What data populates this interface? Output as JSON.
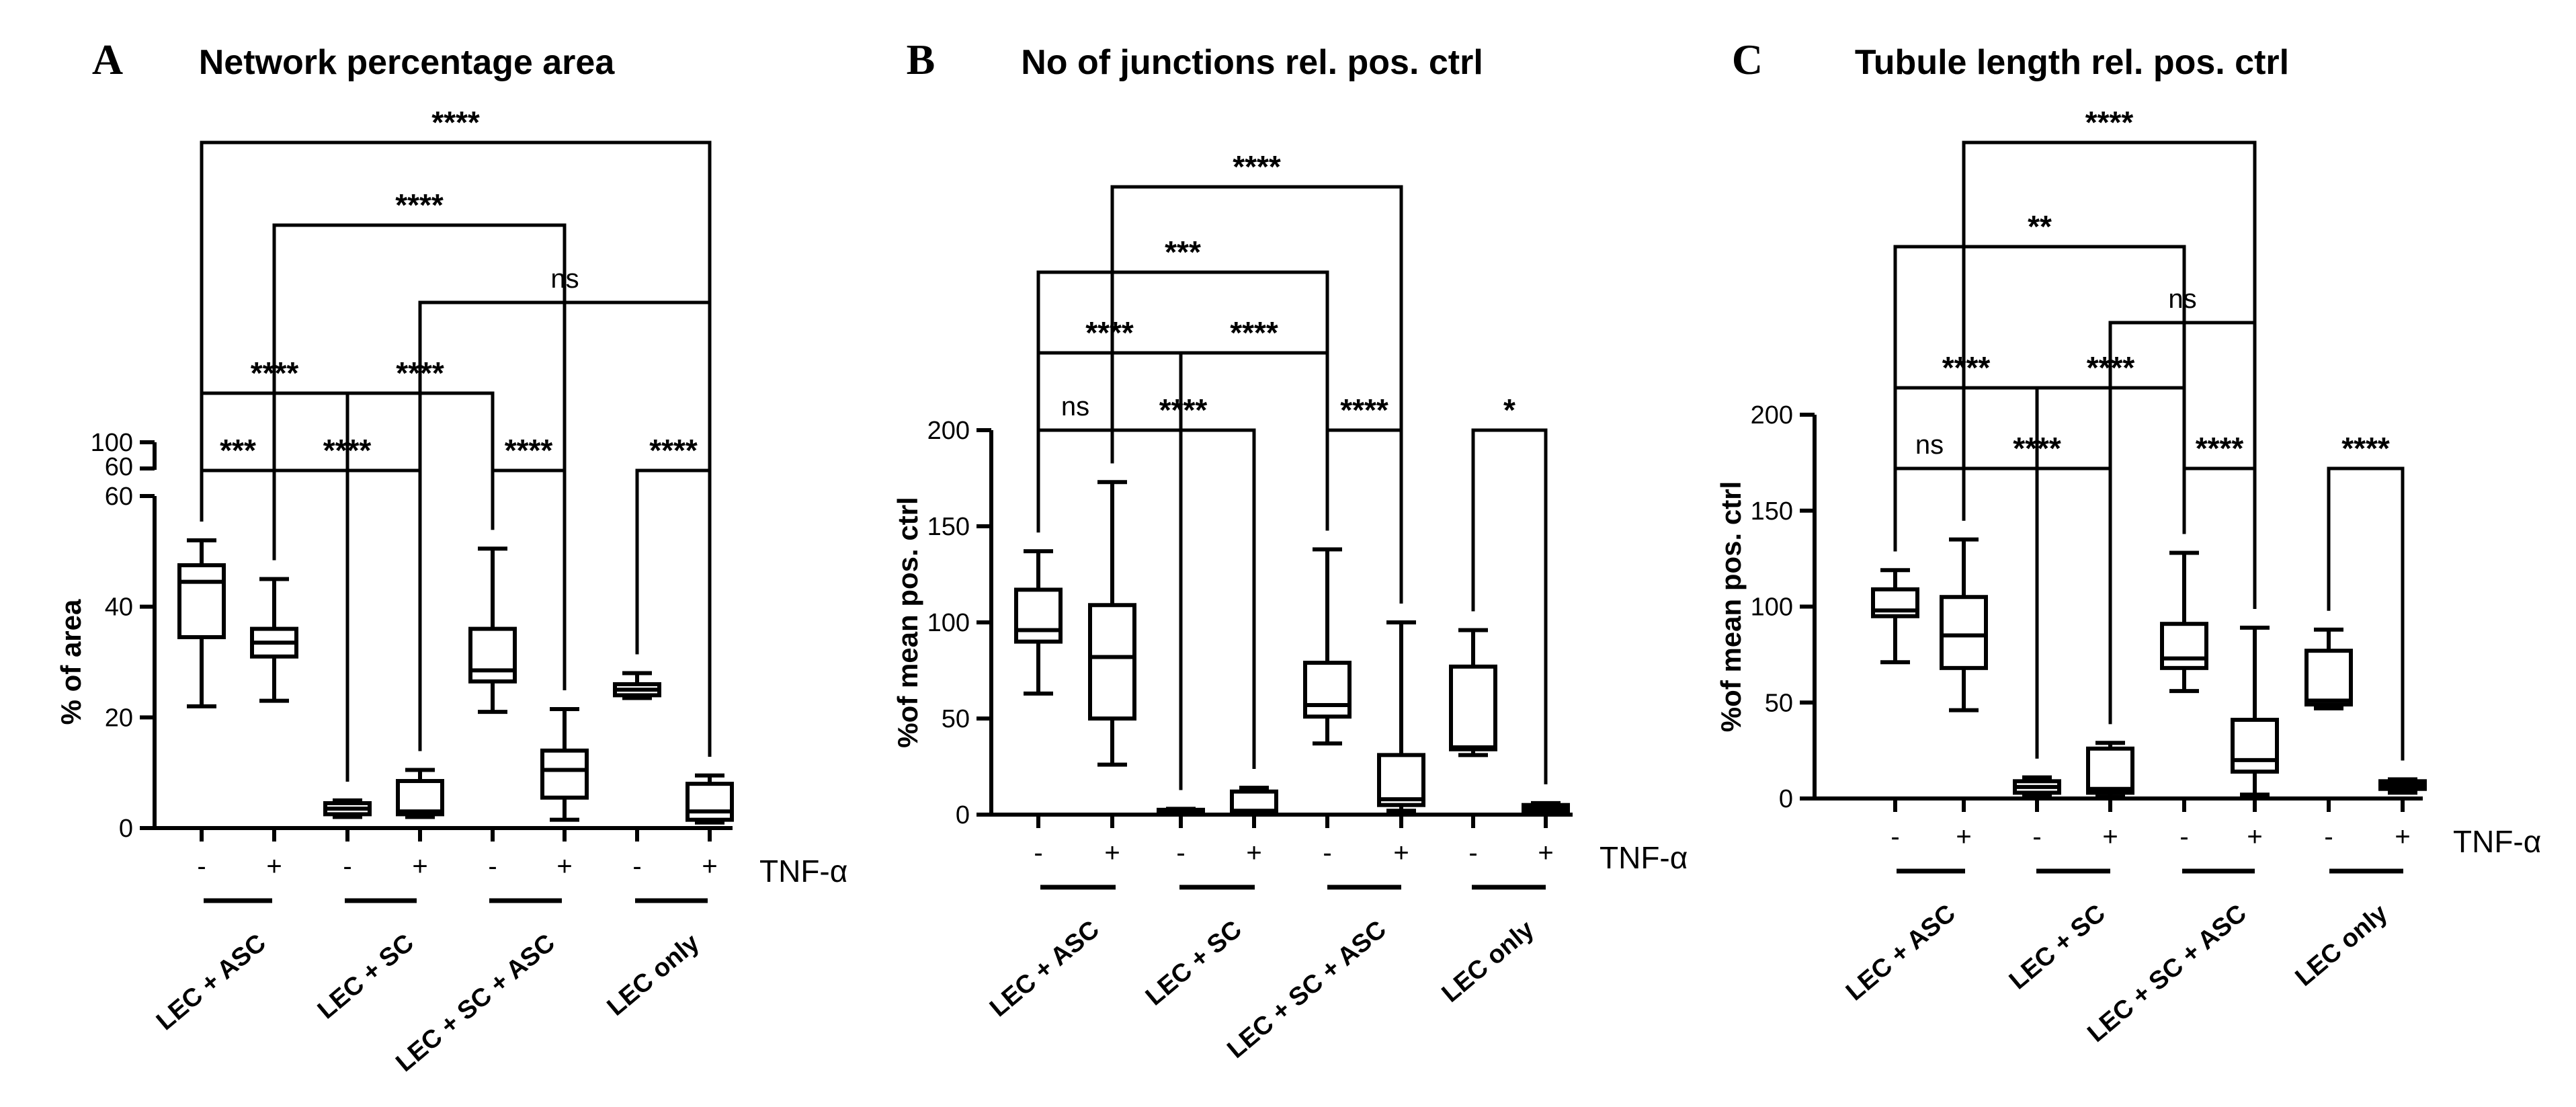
{
  "figure": {
    "panels": [
      "A",
      "B",
      "C"
    ]
  },
  "chart_data": [
    {
      "type": "boxplot",
      "panel_letter": "A",
      "title": "Network percentage area",
      "ylabel": "% of area",
      "ylim": [
        0,
        60
      ],
      "axis_break": true,
      "yticks": [
        0,
        20,
        40,
        60
      ],
      "yticks_upper": [
        60,
        100
      ],
      "categories": [
        "LEC + ASC",
        "LEC + SC",
        "LEC + SC + ASC",
        "LEC only"
      ],
      "treatment_label": "TNF-α",
      "treatment_levels": [
        "-",
        "+"
      ],
      "boxes": [
        {
          "group": "LEC + ASC",
          "tnf": "-",
          "min": 22,
          "q1": 34.5,
          "median": 44.5,
          "q3": 47.5,
          "max": 52
        },
        {
          "group": "LEC + ASC",
          "tnf": "+",
          "min": 23,
          "q1": 31,
          "median": 33.5,
          "q3": 36,
          "max": 45
        },
        {
          "group": "LEC + SC",
          "tnf": "-",
          "min": 2,
          "q1": 2.5,
          "median": 3.5,
          "q3": 4.5,
          "max": 5
        },
        {
          "group": "LEC + SC",
          "tnf": "+",
          "min": 2,
          "q1": 2.5,
          "median": 3,
          "q3": 8.5,
          "max": 10.5
        },
        {
          "group": "LEC + SC + ASC",
          "tnf": "-",
          "min": 21,
          "q1": 26.5,
          "median": 28.5,
          "q3": 36,
          "max": 50.5
        },
        {
          "group": "LEC + SC + ASC",
          "tnf": "+",
          "min": 1.5,
          "q1": 5.5,
          "median": 10.5,
          "q3": 14,
          "max": 21.5
        },
        {
          "group": "LEC only",
          "tnf": "-",
          "min": 23.5,
          "q1": 24,
          "median": 25,
          "q3": 26,
          "max": 28
        },
        {
          "group": "LEC only",
          "tnf": "+",
          "min": 1,
          "q1": 1.5,
          "median": 3,
          "q3": 8,
          "max": 9.5
        }
      ],
      "significance": [
        {
          "from": 0,
          "to": 7,
          "label": "****"
        },
        {
          "from": 1,
          "to": 5,
          "label": "****"
        },
        {
          "from": 3,
          "to": 7,
          "label": "ns"
        },
        {
          "from": 0,
          "to": 2,
          "label": "****"
        },
        {
          "from": 2,
          "to": 4,
          "label": "****"
        },
        {
          "from": 0,
          "to": 1,
          "label": "***"
        },
        {
          "from": 1,
          "to": 3,
          "label": "****"
        },
        {
          "from": 4,
          "to": 5,
          "label": "****"
        },
        {
          "from": 6,
          "to": 7,
          "label": "****"
        }
      ]
    },
    {
      "type": "boxplot",
      "panel_letter": "B",
      "title": "No of junctions rel. pos. ctrl",
      "ylabel": "%of mean pos. ctrl",
      "ylim": [
        0,
        200
      ],
      "yticks": [
        0,
        50,
        100,
        150,
        200
      ],
      "categories": [
        "LEC + ASC",
        "LEC + SC",
        "LEC + SC + ASC",
        "LEC only"
      ],
      "treatment_label": "TNF-α",
      "treatment_levels": [
        "-",
        "+"
      ],
      "boxes": [
        {
          "group": "LEC + ASC",
          "tnf": "-",
          "min": 63,
          "q1": 90,
          "median": 96,
          "q3": 117,
          "max": 137
        },
        {
          "group": "LEC + ASC",
          "tnf": "+",
          "min": 26,
          "q1": 50,
          "median": 82,
          "q3": 109,
          "max": 173
        },
        {
          "group": "LEC + SC",
          "tnf": "-",
          "min": 0,
          "q1": 1,
          "median": 2,
          "q3": 2.5,
          "max": 3
        },
        {
          "group": "LEC + SC",
          "tnf": "+",
          "min": 0,
          "q1": 1,
          "median": 2,
          "q3": 12,
          "max": 14
        },
        {
          "group": "LEC + SC + ASC",
          "tnf": "-",
          "min": 37,
          "q1": 51,
          "median": 57,
          "q3": 79,
          "max": 138
        },
        {
          "group": "LEC + SC + ASC",
          "tnf": "+",
          "min": 2,
          "q1": 5,
          "median": 8,
          "q3": 31,
          "max": 100
        },
        {
          "group": "LEC only",
          "tnf": "-",
          "min": 31,
          "q1": 34,
          "median": 35,
          "q3": 77,
          "max": 96
        },
        {
          "group": "LEC only",
          "tnf": "+",
          "min": 1,
          "q1": 2,
          "median": 4,
          "q3": 5,
          "max": 6
        }
      ],
      "significance": [
        {
          "from": 1,
          "to": 5,
          "label": "****"
        },
        {
          "from": 0,
          "to": 4,
          "label": "***"
        },
        {
          "from": 0,
          "to": 2,
          "label": "****"
        },
        {
          "from": 2,
          "to": 4,
          "label": "****"
        },
        {
          "from": 0,
          "to": 1,
          "label": "ns"
        },
        {
          "from": 1,
          "to": 3,
          "label": "****"
        },
        {
          "from": 4,
          "to": 5,
          "label": "****"
        },
        {
          "from": 6,
          "to": 7,
          "label": "*"
        }
      ]
    },
    {
      "type": "boxplot",
      "panel_letter": "C",
      "title": "Tubule length rel. pos. ctrl",
      "ylabel": "%of mean pos. ctrl",
      "ylim": [
        0,
        200
      ],
      "yticks": [
        0,
        50,
        100,
        150,
        200
      ],
      "categories": [
        "LEC + ASC",
        "LEC + SC",
        "LEC + SC + ASC",
        "LEC only"
      ],
      "treatment_label": "TNF-α",
      "treatment_levels": [
        "-",
        "+"
      ],
      "boxes": [
        {
          "group": "LEC + ASC",
          "tnf": "-",
          "min": 71,
          "q1": 95,
          "median": 98,
          "q3": 109,
          "max": 119
        },
        {
          "group": "LEC + ASC",
          "tnf": "+",
          "min": 46,
          "q1": 68,
          "median": 85,
          "q3": 105,
          "max": 135
        },
        {
          "group": "LEC + SC",
          "tnf": "-",
          "min": 2,
          "q1": 3,
          "median": 6,
          "q3": 9,
          "max": 11
        },
        {
          "group": "LEC + SC",
          "tnf": "+",
          "min": 1,
          "q1": 3,
          "median": 5,
          "q3": 26,
          "max": 29
        },
        {
          "group": "LEC + SC + ASC",
          "tnf": "-",
          "min": 56,
          "q1": 68,
          "median": 73,
          "q3": 91,
          "max": 128
        },
        {
          "group": "LEC + SC + ASC",
          "tnf": "+",
          "min": 2,
          "q1": 14,
          "median": 20,
          "q3": 41,
          "max": 89
        },
        {
          "group": "LEC only",
          "tnf": "-",
          "min": 47,
          "q1": 49,
          "median": 51,
          "q3": 77,
          "max": 88
        },
        {
          "group": "LEC only",
          "tnf": "+",
          "min": 3,
          "q1": 5,
          "median": 7,
          "q3": 9,
          "max": 10
        }
      ],
      "significance": [
        {
          "from": 1,
          "to": 5,
          "label": "****"
        },
        {
          "from": 0,
          "to": 4,
          "label": "**"
        },
        {
          "from": 3,
          "to": 5,
          "label": "ns"
        },
        {
          "from": 0,
          "to": 2,
          "label": "****"
        },
        {
          "from": 2,
          "to": 4,
          "label": "****"
        },
        {
          "from": 0,
          "to": 1,
          "label": "ns"
        },
        {
          "from": 1,
          "to": 3,
          "label": "****"
        },
        {
          "from": 4,
          "to": 5,
          "label": "****"
        },
        {
          "from": 6,
          "to": 7,
          "label": "****"
        }
      ]
    }
  ]
}
